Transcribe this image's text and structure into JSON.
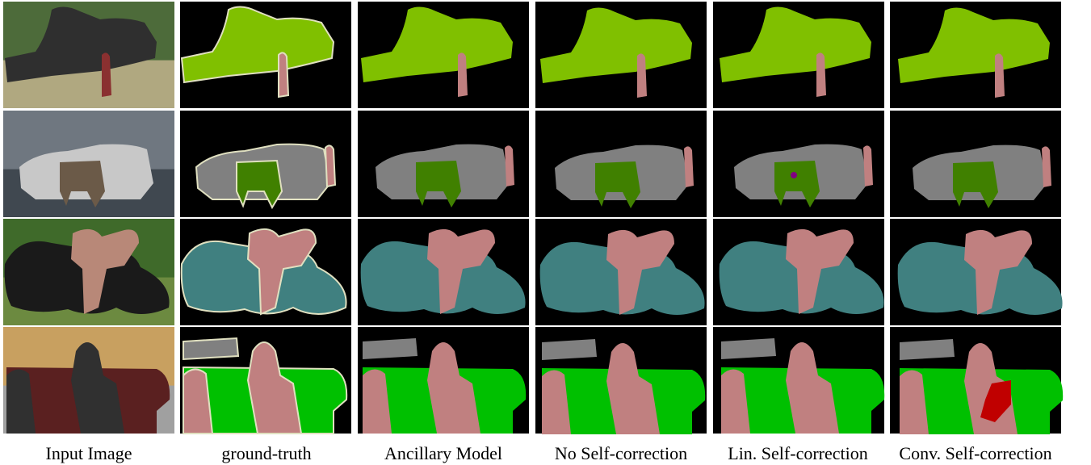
{
  "figure": {
    "columns": [
      "Input Image",
      "ground-truth",
      "Ancillary Model",
      "No Self-correction",
      "Lin. Self-correction",
      "Conv. Self-correction"
    ],
    "rows": [
      "train-scene",
      "cow-car-scene",
      "motorbike-scene",
      "sofa-scene"
    ],
    "class_colors": {
      "background": "#000000",
      "train": "#80c000",
      "person": "#c08080",
      "car": "#808080",
      "cow": "#408000",
      "motorbike": "#408080",
      "sofa": "#00c000",
      "chair": "#c00000",
      "dog": "#800080",
      "boundary": "#e0e0c0"
    }
  }
}
